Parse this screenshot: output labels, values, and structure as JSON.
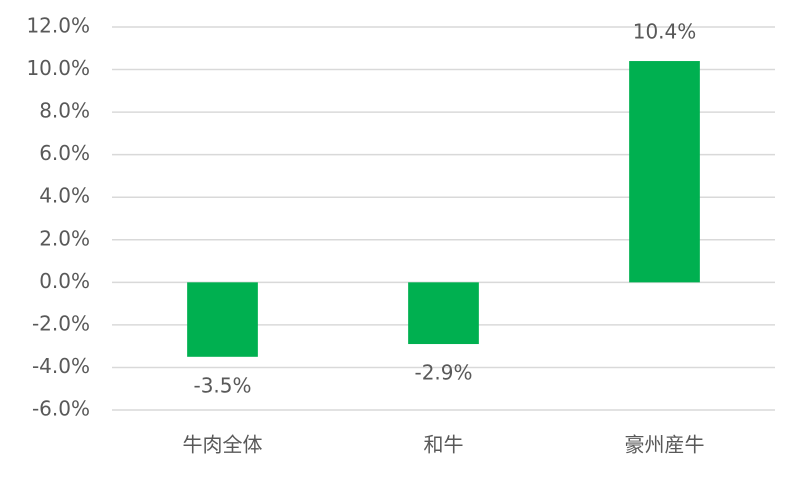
{
  "chart_data": {
    "type": "bar",
    "categories": [
      "牛肉全体",
      "和牛",
      "豪州産牛"
    ],
    "values": [
      -3.5,
      -2.9,
      10.4
    ],
    "value_labels": [
      "-3.5%",
      "-2.9%",
      "10.4%"
    ],
    "color": "#00b050",
    "ylim": [
      -6,
      12
    ],
    "yticks": [
      {
        "value": -6,
        "label": "-6.0%"
      },
      {
        "value": -4,
        "label": "-4.0%"
      },
      {
        "value": -2,
        "label": "-2.0%"
      },
      {
        "value": 0,
        "label": "0.0%"
      },
      {
        "value": 2,
        "label": "2.0%"
      },
      {
        "value": 4,
        "label": "4.0%"
      },
      {
        "value": 6,
        "label": "6.0%"
      },
      {
        "value": 8,
        "label": "8.0%"
      },
      {
        "value": 10,
        "label": "10.0%"
      },
      {
        "value": 12,
        "label": "12.0%"
      }
    ],
    "grid": true
  }
}
